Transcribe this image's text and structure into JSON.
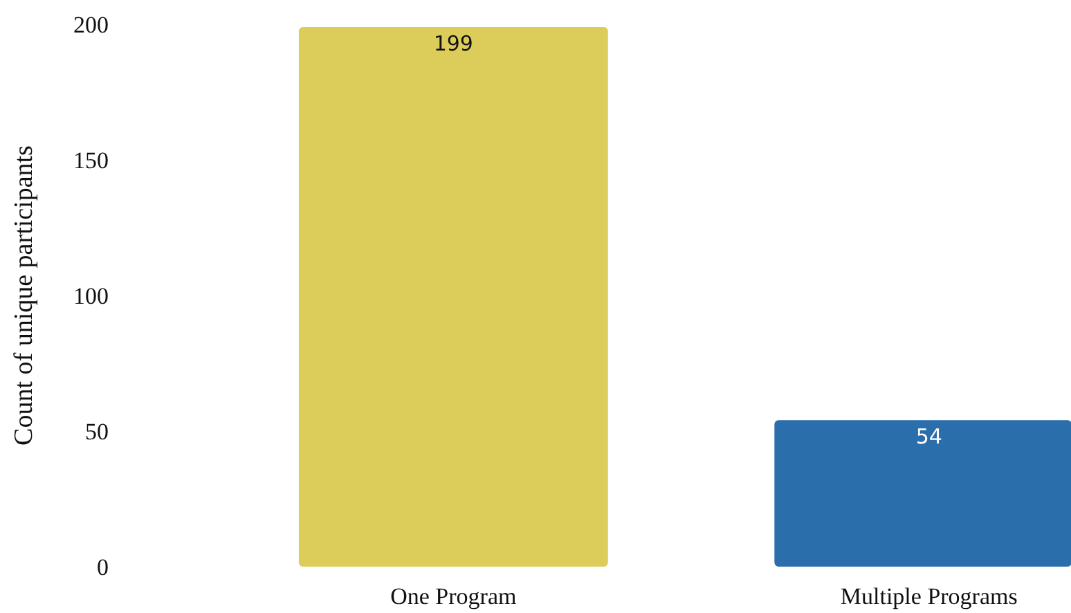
{
  "chart_data": {
    "type": "bar",
    "ylabel": "Count of unique participants",
    "categories": [
      "One Program",
      "Multiple Programs"
    ],
    "values": [
      199,
      54
    ],
    "colors": [
      "#dccd5a",
      "#2a6eab"
    ],
    "ylim": [
      0,
      200
    ],
    "yticks": [
      0,
      50,
      100,
      150,
      200
    ],
    "data_labels": true
  }
}
